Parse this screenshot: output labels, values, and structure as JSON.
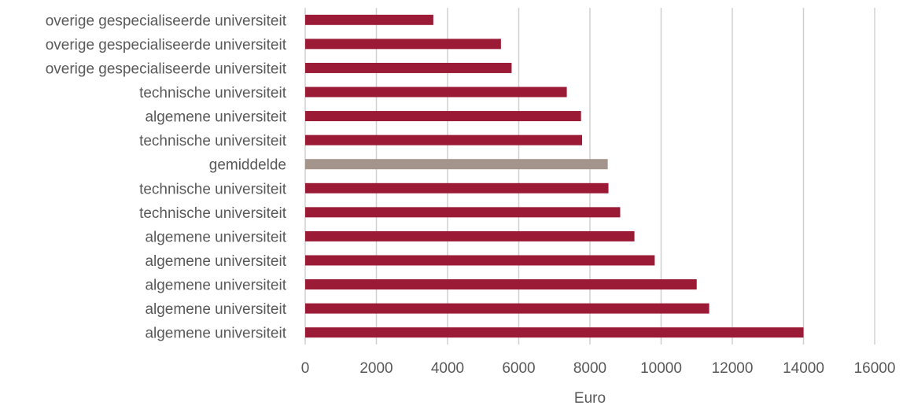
{
  "chart_data": {
    "type": "bar",
    "orientation": "horizontal",
    "categories": [
      "overige gespecialiseerde universiteit",
      "overige gespecialiseerde universiteit",
      "overige gespecialiseerde universiteit",
      "technische universiteit",
      "algemene universiteit",
      "technische universiteit",
      "gemiddelde",
      "technische universiteit",
      "technische universiteit",
      "algemene universiteit",
      "algemene universiteit",
      "algemene universiteit",
      "algemene universiteit",
      "algemene universiteit"
    ],
    "values": [
      3600,
      5500,
      5800,
      7350,
      7750,
      7780,
      8500,
      8520,
      8850,
      9250,
      9820,
      11000,
      11350,
      14000
    ],
    "highlight_category": "gemiddelde",
    "xlabel": "Euro",
    "ylabel": "",
    "xlim": [
      0,
      16000
    ],
    "xticks": [
      0,
      2000,
      4000,
      6000,
      8000,
      10000,
      12000,
      14000,
      16000
    ],
    "grid": "vertical",
    "colors": {
      "bar": "#9b1b36",
      "highlight": "#a3958c",
      "text": "#595959",
      "grid": "#d0d0d0"
    }
  }
}
